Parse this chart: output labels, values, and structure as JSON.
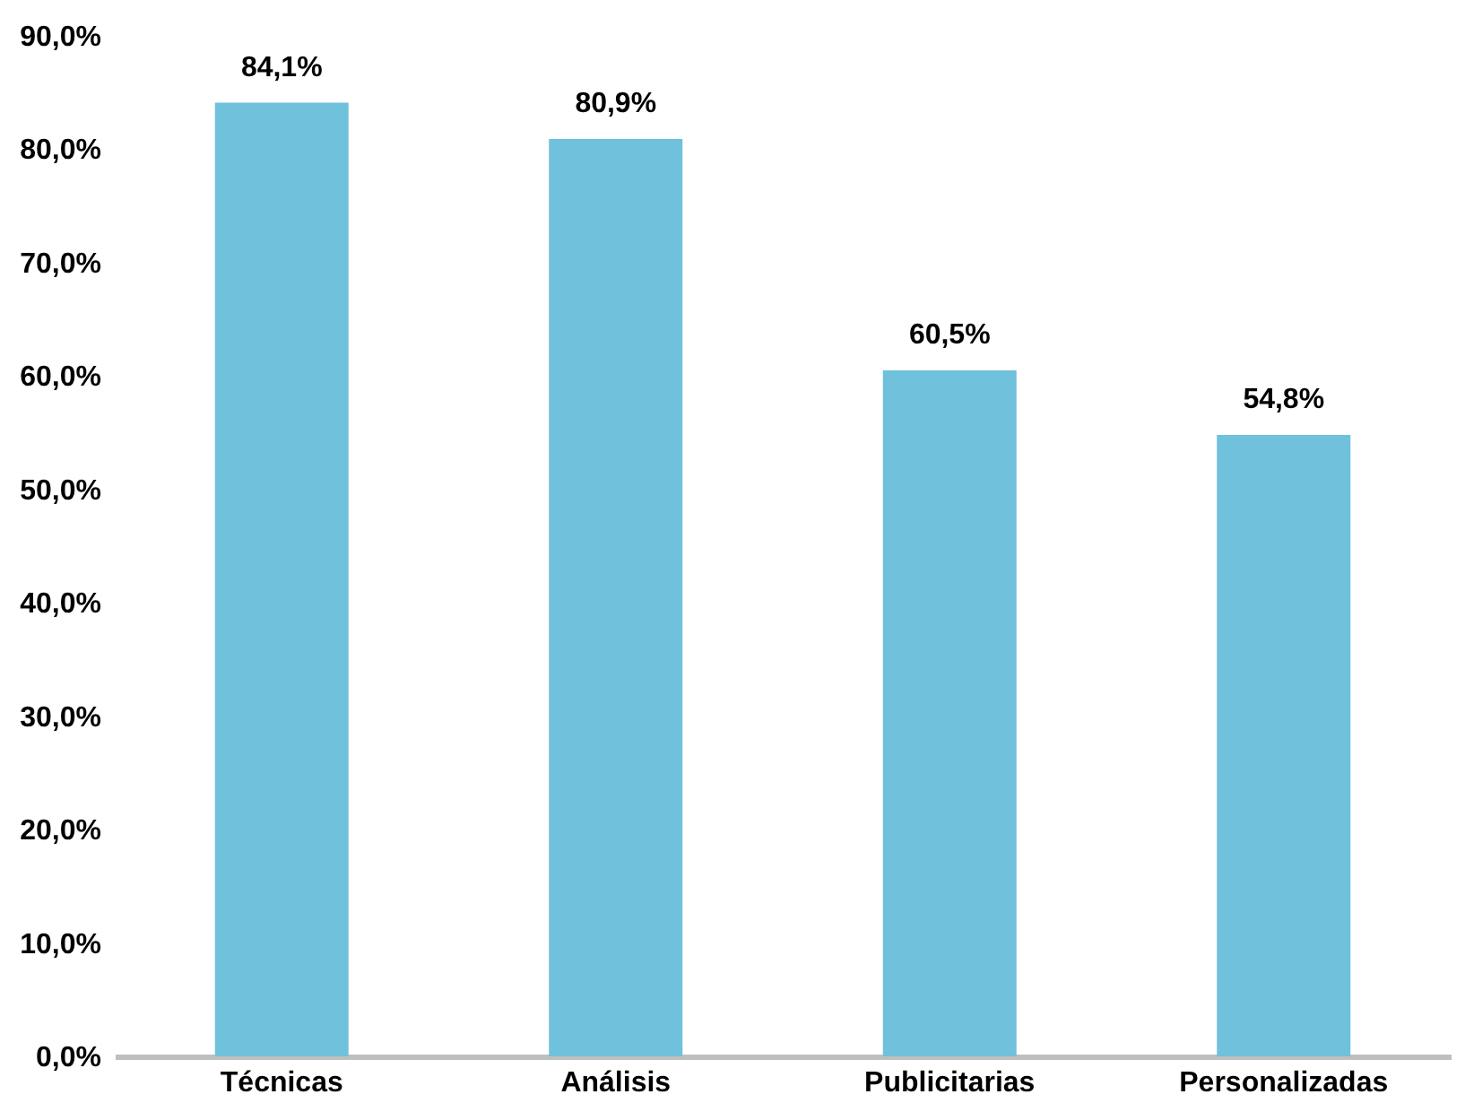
{
  "chart_data": {
    "type": "bar",
    "categories": [
      "Técnicas",
      "Análisis",
      "Publicitarias",
      "Personalizadas"
    ],
    "values": [
      84.1,
      80.9,
      60.5,
      54.8
    ],
    "value_labels": [
      "84,1%",
      "80,9%",
      "60,5%",
      "54,8%"
    ],
    "color": "#6fc1dc",
    "ylim": [
      0,
      90
    ],
    "yticks": [
      {
        "value": 0,
        "label": "0,0%"
      },
      {
        "value": 10,
        "label": "10,0%"
      },
      {
        "value": 20,
        "label": "20,0%"
      },
      {
        "value": 30,
        "label": "30,0%"
      },
      {
        "value": 40,
        "label": "40,0%"
      },
      {
        "value": 50,
        "label": "50,0%"
      },
      {
        "value": 60,
        "label": "60,0%"
      },
      {
        "value": 70,
        "label": "70,0%"
      },
      {
        "value": 80,
        "label": "80,0%"
      },
      {
        "value": 90,
        "label": "90,0%"
      }
    ],
    "grid": false
  }
}
